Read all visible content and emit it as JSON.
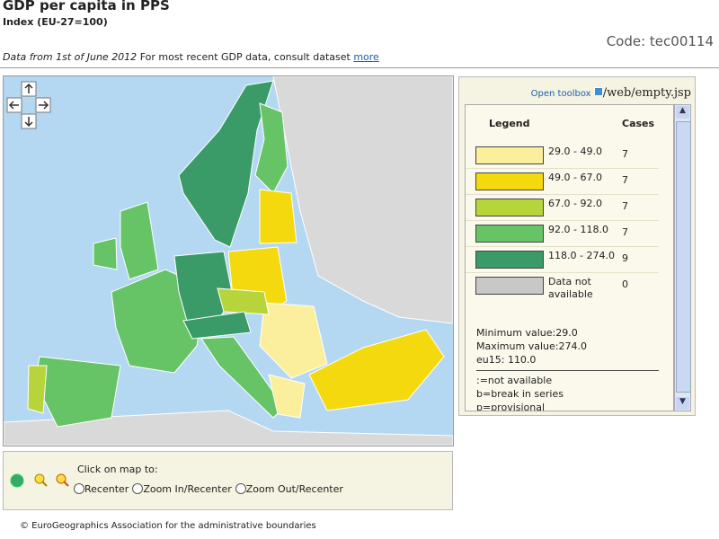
{
  "header": {
    "title": "GDP per capita in PPS",
    "subtitle": "Index (EU-27=100)",
    "code": "Code: tec00114",
    "note_date": "Data from 1st of June 2012",
    "note_text": "For most recent GDP data, consult dataset",
    "note_link": "more"
  },
  "toolbox": {
    "open": "Open toolbox",
    "path": "/web/empty.jsp"
  },
  "legend": {
    "header": [
      "Legend",
      "Cases"
    ],
    "rows": [
      {
        "label": "29.0 - 49.0",
        "cases": 7,
        "color": "#fbef9d"
      },
      {
        "label": "49.0 - 67.0",
        "cases": 7,
        "color": "#f5d90f"
      },
      {
        "label": "67.0 - 92.0",
        "cases": 7,
        "color": "#b7d53a"
      },
      {
        "label": "92.0 - 118.0",
        "cases": 7,
        "color": "#66c466"
      },
      {
        "label": "118.0 - 274.0",
        "cases": 9,
        "color": "#3a9b68"
      },
      {
        "label": "Data not available",
        "cases": 0,
        "color": "#c8c8c8"
      }
    ],
    "stats": [
      "Minimum value:29.0",
      "Maximum value:274.0",
      "eu15: 110.0"
    ],
    "flags": [
      ":=not available",
      "b=break in series",
      "p=provisional"
    ]
  },
  "controls": {
    "prompt": "Click on map to:",
    "options": [
      "Recenter",
      "Zoom In/Recenter",
      "Zoom Out/Recenter"
    ]
  },
  "footer": "© EuroGeographics Association for the administrative boundaries"
}
